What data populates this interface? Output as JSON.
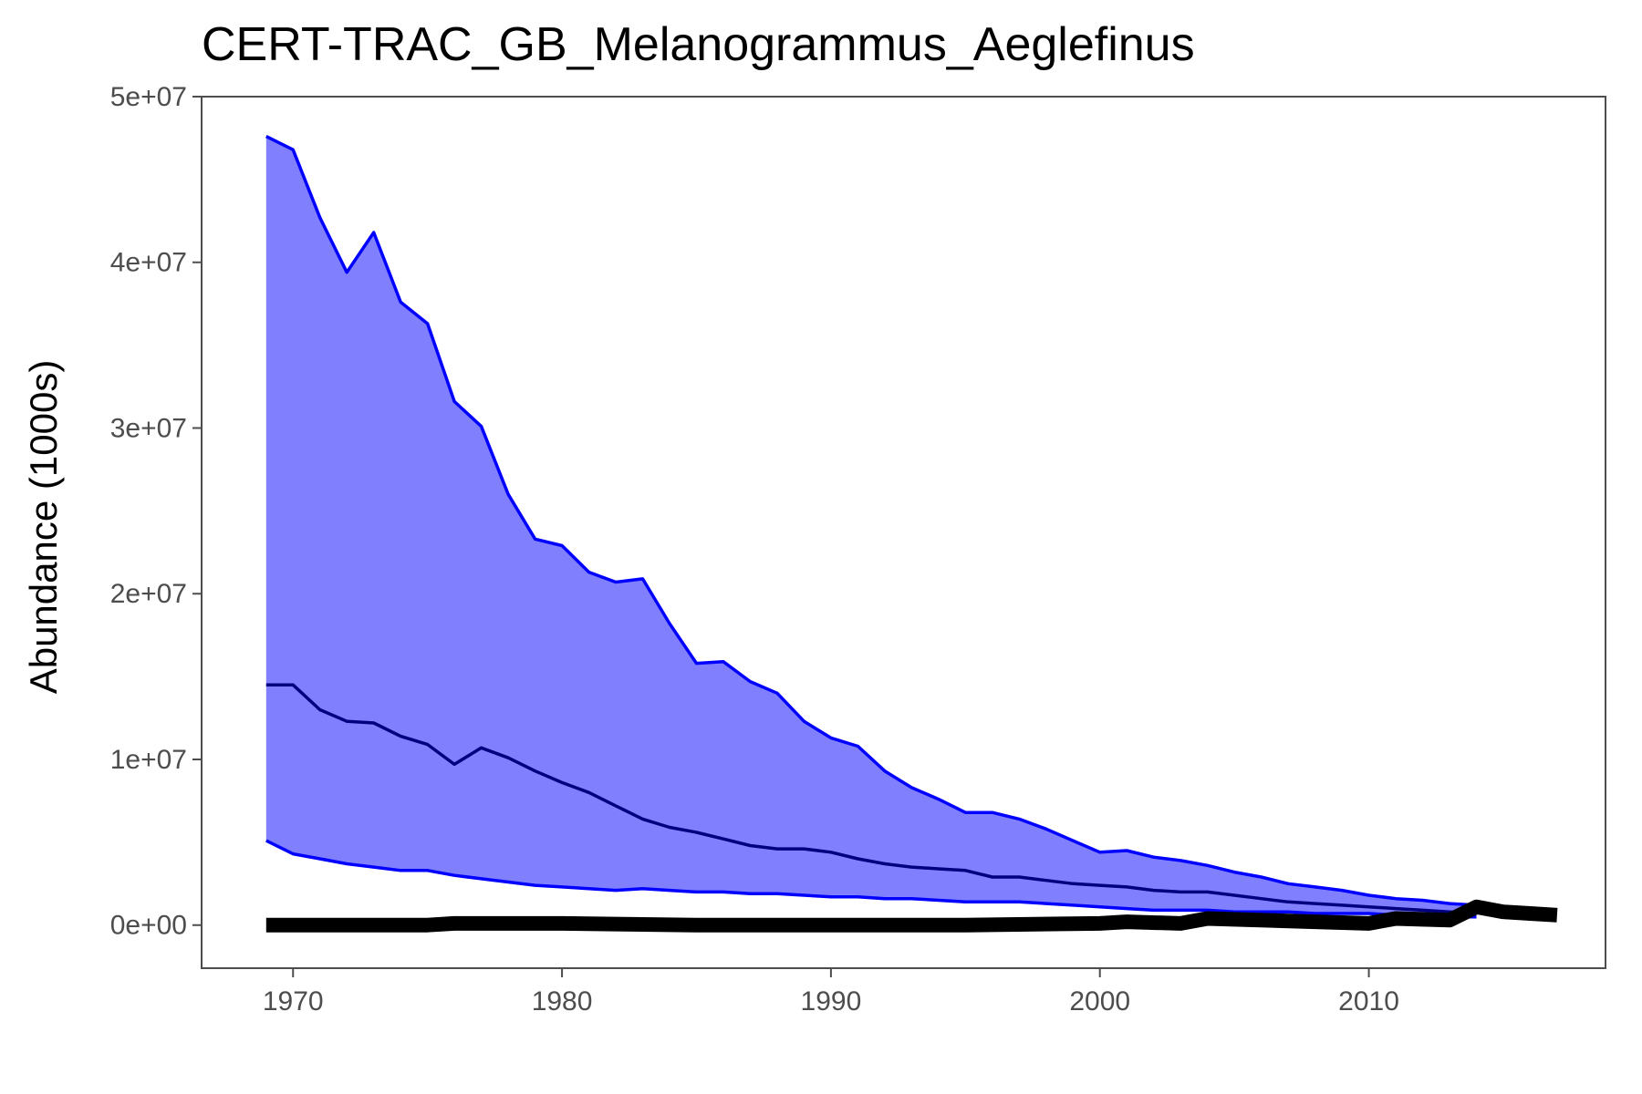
{
  "chart_data": {
    "type": "area",
    "title": "CERT-TRAC_GB_Melanogrammus_Aeglefinus",
    "xlabel": "",
    "ylabel": "Abundance (1000s)",
    "xlim": [
      1966.6,
      2018.8
    ],
    "ylim": [
      -2600000,
      50000000
    ],
    "x_ticks": [
      1970,
      1980,
      1990,
      2000,
      2010
    ],
    "x_tick_labels": [
      "1970",
      "1980",
      "1990",
      "2000",
      "2010"
    ],
    "y_ticks": [
      0,
      10000000,
      20000000,
      30000000,
      40000000,
      50000000
    ],
    "y_tick_labels": [
      "0e+00",
      "1e+07",
      "2e+07",
      "3e+07",
      "4e+07",
      "5e+07"
    ],
    "grid": false,
    "legend": "none",
    "colors": {
      "band_fill": "#8080ff",
      "band_edge": "#0000ff",
      "median_line": "#000080",
      "observed_line": "#000000",
      "axis": "#4d4d4d"
    },
    "years": [
      1969,
      1970,
      1971,
      1972,
      1973,
      1974,
      1975,
      1976,
      1977,
      1978,
      1979,
      1980,
      1981,
      1982,
      1983,
      1984,
      1985,
      1986,
      1987,
      1988,
      1989,
      1990,
      1991,
      1992,
      1993,
      1994,
      1995,
      1996,
      1997,
      1998,
      1999,
      2000,
      2001,
      2002,
      2003,
      2004,
      2005,
      2006,
      2007,
      2008,
      2009,
      2010,
      2011,
      2012,
      2013,
      2014
    ],
    "series": [
      {
        "role": "upper",
        "values": [
          47600000,
          46800000,
          42700000,
          39400000,
          41800000,
          37600000,
          36300000,
          31600000,
          30100000,
          26000000,
          23300000,
          22900000,
          21300000,
          20700000,
          20900000,
          18200000,
          15800000,
          15900000,
          14700000,
          14000000,
          12300000,
          11300000,
          10800000,
          9300000,
          8300000,
          7600000,
          6800000,
          6800000,
          6400000,
          5800000,
          5100000,
          4400000,
          4500000,
          4100000,
          3900000,
          3600000,
          3200000,
          2900000,
          2500000,
          2300000,
          2100000,
          1800000,
          1600000,
          1500000,
          1300000,
          1200000
        ]
      },
      {
        "role": "lower",
        "values": [
          5100000,
          4300000,
          4000000,
          3700000,
          3500000,
          3300000,
          3300000,
          3000000,
          2800000,
          2600000,
          2400000,
          2300000,
          2200000,
          2100000,
          2200000,
          2100000,
          2000000,
          2000000,
          1900000,
          1900000,
          1800000,
          1700000,
          1700000,
          1600000,
          1600000,
          1500000,
          1400000,
          1400000,
          1400000,
          1300000,
          1200000,
          1100000,
          1000000,
          900000,
          900000,
          900000,
          800000,
          800000,
          800000,
          700000,
          700000,
          700000,
          600000,
          600000,
          500000,
          500000
        ]
      },
      {
        "role": "median",
        "values": [
          14500000,
          14500000,
          13000000,
          12300000,
          12200000,
          11400000,
          10900000,
          9700000,
          10700000,
          10100000,
          9300000,
          8600000,
          8000000,
          7200000,
          6400000,
          5900000,
          5600000,
          5200000,
          4800000,
          4600000,
          4600000,
          4400000,
          4000000,
          3700000,
          3500000,
          3400000,
          3300000,
          2900000,
          2900000,
          2700000,
          2500000,
          2400000,
          2300000,
          2100000,
          2000000,
          2000000,
          1800000,
          1600000,
          1400000,
          1300000,
          1200000,
          1100000,
          1000000,
          900000,
          800000,
          700000
        ]
      },
      {
        "role": "observed",
        "years": [
          1969,
          1970,
          1975,
          1976,
          1980,
          1985,
          1990,
          1995,
          2000,
          2001,
          2003,
          2004,
          2008,
          2010,
          2011,
          2013,
          2014,
          2015,
          2016,
          2017
        ],
        "values": [
          0,
          0,
          0,
          100000,
          100000,
          0,
          0,
          0,
          100000,
          200000,
          100000,
          400000,
          200000,
          100000,
          400000,
          300000,
          1100000,
          800000,
          700000,
          600000
        ]
      }
    ]
  }
}
